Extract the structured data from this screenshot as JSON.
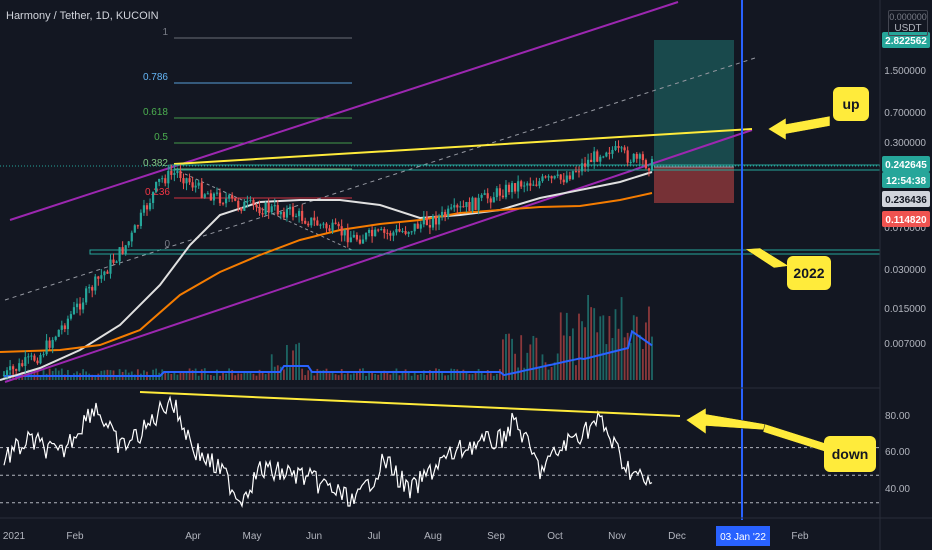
{
  "header": {
    "title": "Harmony / Tether, 1D, KUCOIN"
  },
  "price_scale": {
    "currency_label": "USDT",
    "top_cut_label": "0.000000",
    "ticks": [
      "1.500000",
      "0.700000",
      "0.300000",
      "0.070000",
      "0.030000",
      "0.015000",
      "0.007000"
    ],
    "tags": [
      {
        "text": "2.822562",
        "color": "#26a69a"
      },
      {
        "text": "0.242645",
        "color": "#26a69a"
      },
      {
        "text": "12:54:38",
        "color": "#26a69a"
      },
      {
        "text": "0.236436",
        "color": "#d1d4dc"
      },
      {
        "text": "0.114820",
        "color": "#ef5350"
      }
    ]
  },
  "rsi_scale": {
    "ticks": [
      "80.00",
      "60.00",
      "40.00"
    ]
  },
  "time_axis": {
    "labels": [
      "2021",
      "Feb",
      "Apr",
      "May",
      "Jun",
      "Jul",
      "Aug",
      "Sep",
      "Oct",
      "Nov",
      "Dec",
      "Feb"
    ],
    "highlight": "03 Jan '22"
  },
  "fibonacci": [
    {
      "level": "1",
      "color": "#787b86"
    },
    {
      "level": "0.786",
      "color": "#64b5f6"
    },
    {
      "level": "0.618",
      "color": "#4caf50"
    },
    {
      "level": "0.5",
      "color": "#4caf50"
    },
    {
      "level": "0.382",
      "color": "#81c784"
    },
    {
      "level": "0.236",
      "color": "#f23645"
    },
    {
      "level": "0",
      "color": "#787b86"
    }
  ],
  "annotations": {
    "up": "up",
    "year": "2022",
    "down": "down"
  },
  "colors": {
    "background": "#131722",
    "candle_up": "#26a69a",
    "candle_down": "#ef5350",
    "channel": "#9c27b0",
    "trend": "#ffeb3b",
    "horizontal": "#26a69a",
    "ma_fast": "#e0e0e0",
    "ma_slow": "#f57c00",
    "volume_ma": "#2962ff",
    "rsi": "#ffffff",
    "marker": "#2962ff"
  },
  "chart_data": [
    {
      "type": "candlestick",
      "title": "Harmony / Tether, 1D, KUCOIN",
      "y_scale": "log",
      "x": [
        "2021-01",
        "2021-02",
        "2021-03",
        "2021-04",
        "2021-05",
        "2021-06",
        "2021-07",
        "2021-08",
        "2021-09",
        "2021-10",
        "2021-11"
      ],
      "close": [
        0.007,
        0.015,
        0.05,
        0.15,
        0.12,
        0.1,
        0.075,
        0.09,
        0.12,
        0.17,
        0.242645
      ],
      "last_price": 0.242645,
      "position": {
        "target": 2.822562,
        "entry": 0.236436,
        "stop": 0.11482
      }
    },
    {
      "type": "line",
      "name": "RSI",
      "ylim": [
        20,
        100
      ],
      "x": [
        "2021-01",
        "2021-02",
        "2021-03",
        "2021-04",
        "2021-05",
        "2021-06",
        "2021-07",
        "2021-08",
        "2021-09",
        "2021-10",
        "2021-11"
      ],
      "values": [
        62,
        72,
        88,
        63,
        55,
        48,
        40,
        52,
        68,
        72,
        42
      ],
      "levels": [
        70,
        50,
        30
      ]
    }
  ]
}
